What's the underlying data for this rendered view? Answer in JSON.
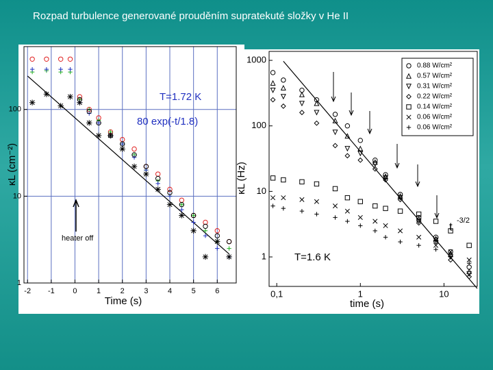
{
  "title": "Rozpad turbulence generované prouděním supratekuté složky v He II",
  "chart_data": [
    {
      "type": "scatter",
      "x_label": "Time (s)",
      "y_label": "κL (cm⁻²)",
      "annotations": [
        "T=1.72 K",
        "80 exp(-t/1.8)",
        "heater off"
      ],
      "xlim": [
        -2.15,
        6.8
      ],
      "ylim": [
        1,
        530
      ],
      "y_log": true,
      "grid": true,
      "grid_color": "#5a6fc0",
      "xticks": [
        -2,
        -1,
        0,
        1,
        2,
        3,
        4,
        5,
        6
      ],
      "yticks": [
        1,
        10,
        100
      ],
      "x": [
        -1.8,
        -1.2,
        -0.6,
        -0.2,
        0.2,
        0.6,
        1,
        1.5,
        2,
        2.5,
        3,
        3.5,
        4,
        4.5,
        5,
        5.5,
        6,
        6.5
      ],
      "series": [
        {
          "color": "#e02020",
          "marker": "circle",
          "values": [
            380,
            380,
            380,
            380,
            140,
            100,
            80,
            55,
            45,
            35,
            22,
            18,
            12,
            9,
            6,
            5,
            4,
            3
          ]
        },
        {
          "color": "#20b020",
          "marker": "plus",
          "values": [
            270,
            280,
            270,
            270,
            130,
            100,
            75,
            55,
            40,
            30,
            20,
            15,
            10,
            8,
            6,
            4,
            3,
            2.5
          ]
        },
        {
          "color": "#2030c0",
          "marker": "plus",
          "values": [
            290,
            290,
            290,
            290,
            120,
            90,
            70,
            50,
            40,
            28,
            20,
            14,
            10,
            7,
            5,
            3.5,
            2.5,
            2
          ]
        },
        {
          "color": "#000000",
          "marker": "star",
          "values": [
            120,
            150,
            110,
            140,
            120,
            70,
            50,
            50,
            35,
            22,
            18,
            12,
            8,
            6,
            4,
            2,
            3,
            2
          ]
        },
        {
          "color": "#000000",
          "marker": "circle",
          "values": [
            null,
            null,
            null,
            null,
            130,
            95,
            70,
            50,
            40,
            30,
            22,
            16,
            11,
            8,
            6,
            4.5,
            3.5,
            3
          ]
        }
      ],
      "lines": [
        {
          "x": [
            -2,
            6.5
          ],
          "values": [
            243,
            2.16
          ],
          "color": "#000000"
        }
      ]
    },
    {
      "type": "scatter",
      "x_label": "time (s)",
      "y_label": "κL (Hz)",
      "annotations": [
        "T=1.6 K",
        "t",
        "-3/2"
      ],
      "xlim": [
        0.081,
        25
      ],
      "ylim": [
        0.355,
        1370
      ],
      "x_log": true,
      "y_log": true,
      "grid": false,
      "legend": "upper right",
      "xticks": [
        {
          "value": 0.1,
          "label": "0,1"
        },
        1,
        10
      ],
      "yticks": [
        1,
        10,
        100,
        1000
      ],
      "x": [
        0.09,
        0.12,
        0.2,
        0.3,
        0.5,
        0.7,
        1,
        1.5,
        2,
        3,
        5,
        8,
        12,
        20
      ],
      "series": [
        {
          "name": "0.88 W/cm²",
          "color": "#000000",
          "marker": "circle",
          "values": [
            650,
            500,
            350,
            250,
            150,
            100,
            60,
            30,
            18,
            9,
            4,
            2,
            1.2,
            0.7
          ]
        },
        {
          "name": "0.57 W/cm²",
          "color": "#000000",
          "marker": "triangle-up",
          "values": [
            450,
            380,
            300,
            220,
            120,
            70,
            45,
            28,
            17,
            8.5,
            3.8,
            1.9,
            1.1,
            0.6
          ]
        },
        {
          "name": "0.31 W/cm²",
          "color": "#000000",
          "marker": "triangle-down",
          "values": [
            350,
            280,
            220,
            160,
            80,
            45,
            38,
            26,
            16,
            8,
            3.5,
            1.8,
            1,
            0.55
          ]
        },
        {
          "name": "0.22 W/cm²",
          "color": "#000000",
          "marker": "diamond",
          "values": [
            250,
            200,
            160,
            110,
            50,
            35,
            30,
            22,
            15,
            7.5,
            3.3,
            1.7,
            0.9,
            0.5
          ]
        },
        {
          "name": "0.14 W/cm²",
          "color": "#000000",
          "marker": "square",
          "values": [
            16,
            15,
            14,
            13,
            11,
            8,
            7,
            6,
            5.5,
            5,
            4.5,
            3.5,
            2.5,
            1.5
          ]
        },
        {
          "name": "0.06 W/cm²",
          "color": "#000000",
          "marker": "cross",
          "values": [
            8,
            8,
            7.5,
            7,
            6,
            5,
            4,
            3.5,
            3,
            2.5,
            2,
            1.5,
            1.2,
            0.9
          ]
        },
        {
          "name": "0.06 W/cm²",
          "color": "#000000",
          "marker": "plus",
          "values": [
            6,
            5.5,
            5,
            4.5,
            4,
            3.5,
            3,
            2.5,
            2,
            1.7,
            1.5,
            1.3,
            1,
            0.8
          ]
        }
      ],
      "lines": [
        {
          "x": [
            0.12,
            25
          ],
          "values": [
            970,
            0.33
          ],
          "color": "#000000"
        }
      ]
    }
  ]
}
